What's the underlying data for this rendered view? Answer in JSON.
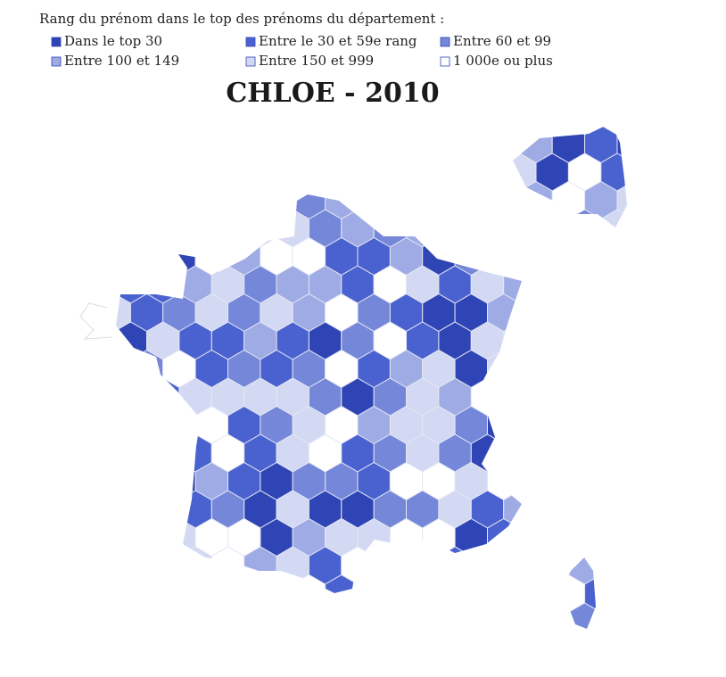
{
  "legend": {
    "title": "Rang du prénom dans le top des prénoms du département :",
    "items": [
      {
        "label": "Dans le top 30",
        "color": "#3045b5"
      },
      {
        "label": "Entre le 30 et 59e rang",
        "color": "#4a62cf"
      },
      {
        "label": "Entre 60 et 99",
        "color": "#7587d9"
      },
      {
        "label": "Entre 100 et 149",
        "color": "#9eabe4"
      },
      {
        "label": "Entre 150 et 999",
        "color": "#d3d9f3"
      },
      {
        "label": "1 000e ou plus",
        "color": "#ffffff"
      }
    ]
  },
  "title": "CHLOE - 2010"
}
